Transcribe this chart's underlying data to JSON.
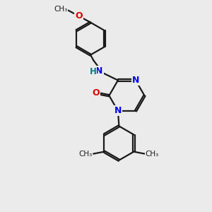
{
  "bg_color": "#ebebeb",
  "bond_color": "#1a1a1a",
  "N_color": "#0000ee",
  "O_color": "#dd0000",
  "NH_color": "#008080",
  "line_width": 1.6,
  "xlim": [
    0,
    10
  ],
  "ylim": [
    0,
    10
  ]
}
